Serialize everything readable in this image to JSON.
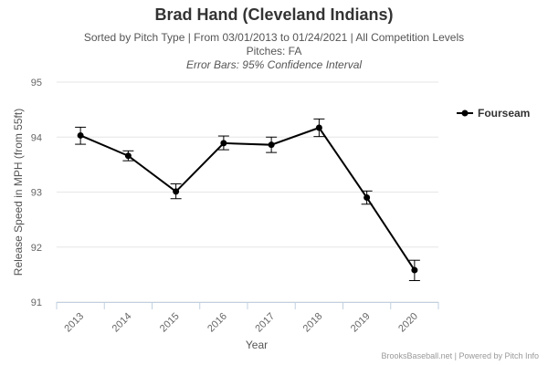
{
  "title": "Brad Hand (Cleveland Indians)",
  "subtitle_line1": "Sorted by Pitch Type | From 03/01/2013 to 01/24/2021 | All Competition Levels",
  "subtitle_line2": "Pitches: FA",
  "subtitle_line3": "Error Bars: 95% Confidence Interval",
  "credits": {
    "site": "BrooksBaseball.net",
    "separator": " | ",
    "powered": "Powered by Pitch Info"
  },
  "colors": {
    "series": "#000000",
    "grid": "#e6e6e6",
    "axis": "#c0d0e0"
  },
  "chart_data": {
    "type": "line",
    "xlabel": "Year",
    "ylabel": "Release Speed in MPH (from 55ft)",
    "categories": [
      "2013",
      "2014",
      "2015",
      "2016",
      "2017",
      "2018",
      "2019",
      "2020"
    ],
    "ylim": [
      91,
      95
    ],
    "yticks": [
      91,
      92,
      93,
      94,
      95
    ],
    "grid": true,
    "legend_position": "right",
    "series": [
      {
        "name": "Fourseam",
        "values": [
          94.03,
          93.66,
          93.01,
          93.89,
          93.86,
          94.17,
          92.9,
          91.58
        ],
        "error_low": [
          93.87,
          93.57,
          92.88,
          93.77,
          93.72,
          94.01,
          92.78,
          91.39
        ],
        "error_high": [
          94.18,
          93.75,
          93.15,
          94.02,
          94.0,
          94.33,
          93.02,
          91.76
        ]
      }
    ]
  }
}
